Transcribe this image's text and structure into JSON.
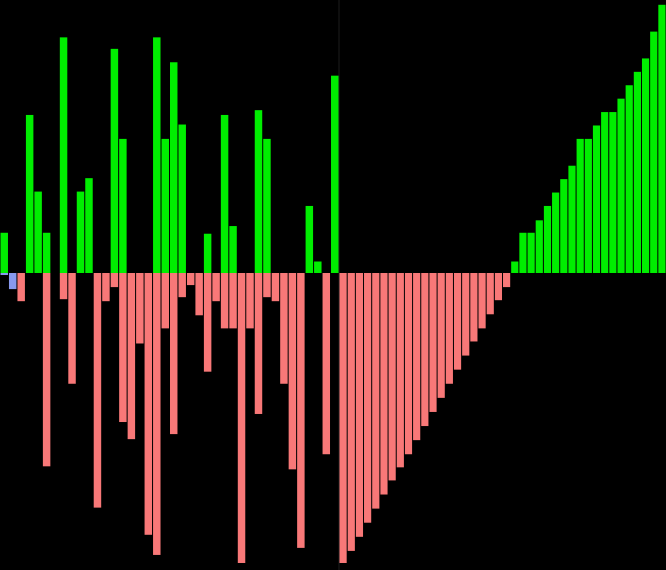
{
  "colors": {
    "background": "#000000",
    "positive": "#00ee00",
    "negative": "#f87878",
    "highlight": "#8899ee",
    "divider": "#1c1c1c"
  },
  "chart_data": {
    "type": "bar",
    "title": "",
    "xlabel": "",
    "ylabel": "",
    "ylim": [
      -2.9,
      2.85
    ],
    "grid": false,
    "legend": "none",
    "panels": [
      {
        "name": "",
        "bars": [
          {
            "id": 0,
            "pos": 0.42,
            "neg": -0.02,
            "color_neg": "highlight"
          },
          {
            "id": 1,
            "pos": 0.0,
            "neg": -0.16,
            "color_neg": "highlight"
          },
          {
            "id": 2,
            "pos": 0.0,
            "neg": -0.28
          },
          {
            "id": 3,
            "pos": 1.65,
            "neg": 0.0
          },
          {
            "id": 4,
            "pos": 0.85,
            "neg": 0.0
          },
          {
            "id": 5,
            "pos": 0.42,
            "neg": -1.92
          },
          {
            "id": 6,
            "pos": 0.0,
            "neg": 0.0
          },
          {
            "id": 7,
            "pos": 2.46,
            "neg": -0.26
          },
          {
            "id": 8,
            "pos": 0.0,
            "neg": -1.1
          },
          {
            "id": 9,
            "pos": 0.85,
            "neg": 0.0
          },
          {
            "id": 10,
            "pos": 0.99,
            "neg": 0.0
          },
          {
            "id": 11,
            "pos": 0.0,
            "neg": -2.33
          },
          {
            "id": 12,
            "pos": 0.0,
            "neg": -0.28
          },
          {
            "id": 13,
            "pos": 2.34,
            "neg": -0.14
          },
          {
            "id": 14,
            "pos": 1.4,
            "neg": -1.48
          },
          {
            "id": 15,
            "pos": 0.0,
            "neg": -1.65
          },
          {
            "id": 16,
            "pos": 0.0,
            "neg": -0.7
          },
          {
            "id": 17,
            "pos": 0.0,
            "neg": -2.6
          },
          {
            "id": 18,
            "pos": 2.46,
            "neg": -2.8
          },
          {
            "id": 19,
            "pos": 1.4,
            "neg": -0.55
          },
          {
            "id": 20,
            "pos": 2.2,
            "neg": -1.6
          },
          {
            "id": 21,
            "pos": 1.55,
            "neg": -0.24
          },
          {
            "id": 22,
            "pos": 0.0,
            "neg": -0.12
          },
          {
            "id": 23,
            "pos": 0.0,
            "neg": -0.42
          },
          {
            "id": 24,
            "pos": 0.41,
            "neg": -0.98
          },
          {
            "id": 25,
            "pos": 0.0,
            "neg": -0.28
          },
          {
            "id": 26,
            "pos": 1.65,
            "neg": -0.55
          },
          {
            "id": 27,
            "pos": 0.49,
            "neg": -0.55
          },
          {
            "id": 28,
            "pos": 0.0,
            "neg": -2.88
          },
          {
            "id": 29,
            "pos": 0.0,
            "neg": -0.55
          },
          {
            "id": 30,
            "pos": 1.7,
            "neg": -1.4
          },
          {
            "id": 31,
            "pos": 1.4,
            "neg": -0.24
          },
          {
            "id": 32,
            "pos": 0.0,
            "neg": -0.28
          },
          {
            "id": 33,
            "pos": 0.0,
            "neg": -1.1
          },
          {
            "id": 34,
            "pos": 0.0,
            "neg": -1.95
          },
          {
            "id": 35,
            "pos": 0.0,
            "neg": -2.73
          },
          {
            "id": 36,
            "pos": 0.7,
            "neg": 0.0
          },
          {
            "id": 37,
            "pos": 0.12,
            "neg": 0.0
          },
          {
            "id": 38,
            "pos": 0.0,
            "neg": -1.8
          },
          {
            "id": 39,
            "pos": 2.06,
            "neg": 0.0
          }
        ]
      },
      {
        "name": "",
        "bars": [
          {
            "id": 0,
            "pos": 0.0,
            "neg": -2.88
          },
          {
            "id": 1,
            "pos": 0.0,
            "neg": -2.76
          },
          {
            "id": 2,
            "pos": 0.0,
            "neg": -2.62
          },
          {
            "id": 3,
            "pos": 0.0,
            "neg": -2.48
          },
          {
            "id": 4,
            "pos": 0.0,
            "neg": -2.34
          },
          {
            "id": 5,
            "pos": 0.0,
            "neg": -2.2
          },
          {
            "id": 6,
            "pos": 0.0,
            "neg": -2.06
          },
          {
            "id": 7,
            "pos": 0.0,
            "neg": -1.93
          },
          {
            "id": 8,
            "pos": 0.0,
            "neg": -1.8
          },
          {
            "id": 9,
            "pos": 0.0,
            "neg": -1.66
          },
          {
            "id": 10,
            "pos": 0.0,
            "neg": -1.52
          },
          {
            "id": 11,
            "pos": 0.0,
            "neg": -1.38
          },
          {
            "id": 12,
            "pos": 0.0,
            "neg": -1.24
          },
          {
            "id": 13,
            "pos": 0.0,
            "neg": -1.1
          },
          {
            "id": 14,
            "pos": 0.0,
            "neg": -0.96
          },
          {
            "id": 15,
            "pos": 0.0,
            "neg": -0.82
          },
          {
            "id": 16,
            "pos": 0.0,
            "neg": -0.68
          },
          {
            "id": 17,
            "pos": 0.0,
            "neg": -0.55
          },
          {
            "id": 18,
            "pos": 0.0,
            "neg": -0.41
          },
          {
            "id": 19,
            "pos": 0.0,
            "neg": -0.27
          },
          {
            "id": 20,
            "pos": 0.0,
            "neg": -0.14
          },
          {
            "id": 21,
            "pos": 0.12,
            "neg": 0.0
          },
          {
            "id": 22,
            "pos": 0.42,
            "neg": 0.0
          },
          {
            "id": 23,
            "pos": 0.42,
            "neg": 0.0
          },
          {
            "id": 24,
            "pos": 0.55,
            "neg": 0.0
          },
          {
            "id": 25,
            "pos": 0.7,
            "neg": 0.0
          },
          {
            "id": 26,
            "pos": 0.84,
            "neg": 0.0
          },
          {
            "id": 27,
            "pos": 0.98,
            "neg": 0.0
          },
          {
            "id": 28,
            "pos": 1.12,
            "neg": 0.0
          },
          {
            "id": 29,
            "pos": 1.4,
            "neg": 0.0
          },
          {
            "id": 30,
            "pos": 1.4,
            "neg": 0.0
          },
          {
            "id": 31,
            "pos": 1.54,
            "neg": 0.0
          },
          {
            "id": 32,
            "pos": 1.68,
            "neg": 0.0
          },
          {
            "id": 33,
            "pos": 1.68,
            "neg": 0.0
          },
          {
            "id": 34,
            "pos": 1.82,
            "neg": 0.0
          },
          {
            "id": 35,
            "pos": 1.96,
            "neg": 0.0
          },
          {
            "id": 36,
            "pos": 2.1,
            "neg": 0.0
          },
          {
            "id": 37,
            "pos": 2.24,
            "neg": 0.0
          },
          {
            "id": 38,
            "pos": 2.52,
            "neg": 0.0
          },
          {
            "id": 39,
            "pos": 2.8,
            "neg": 0.0
          }
        ]
      }
    ]
  }
}
